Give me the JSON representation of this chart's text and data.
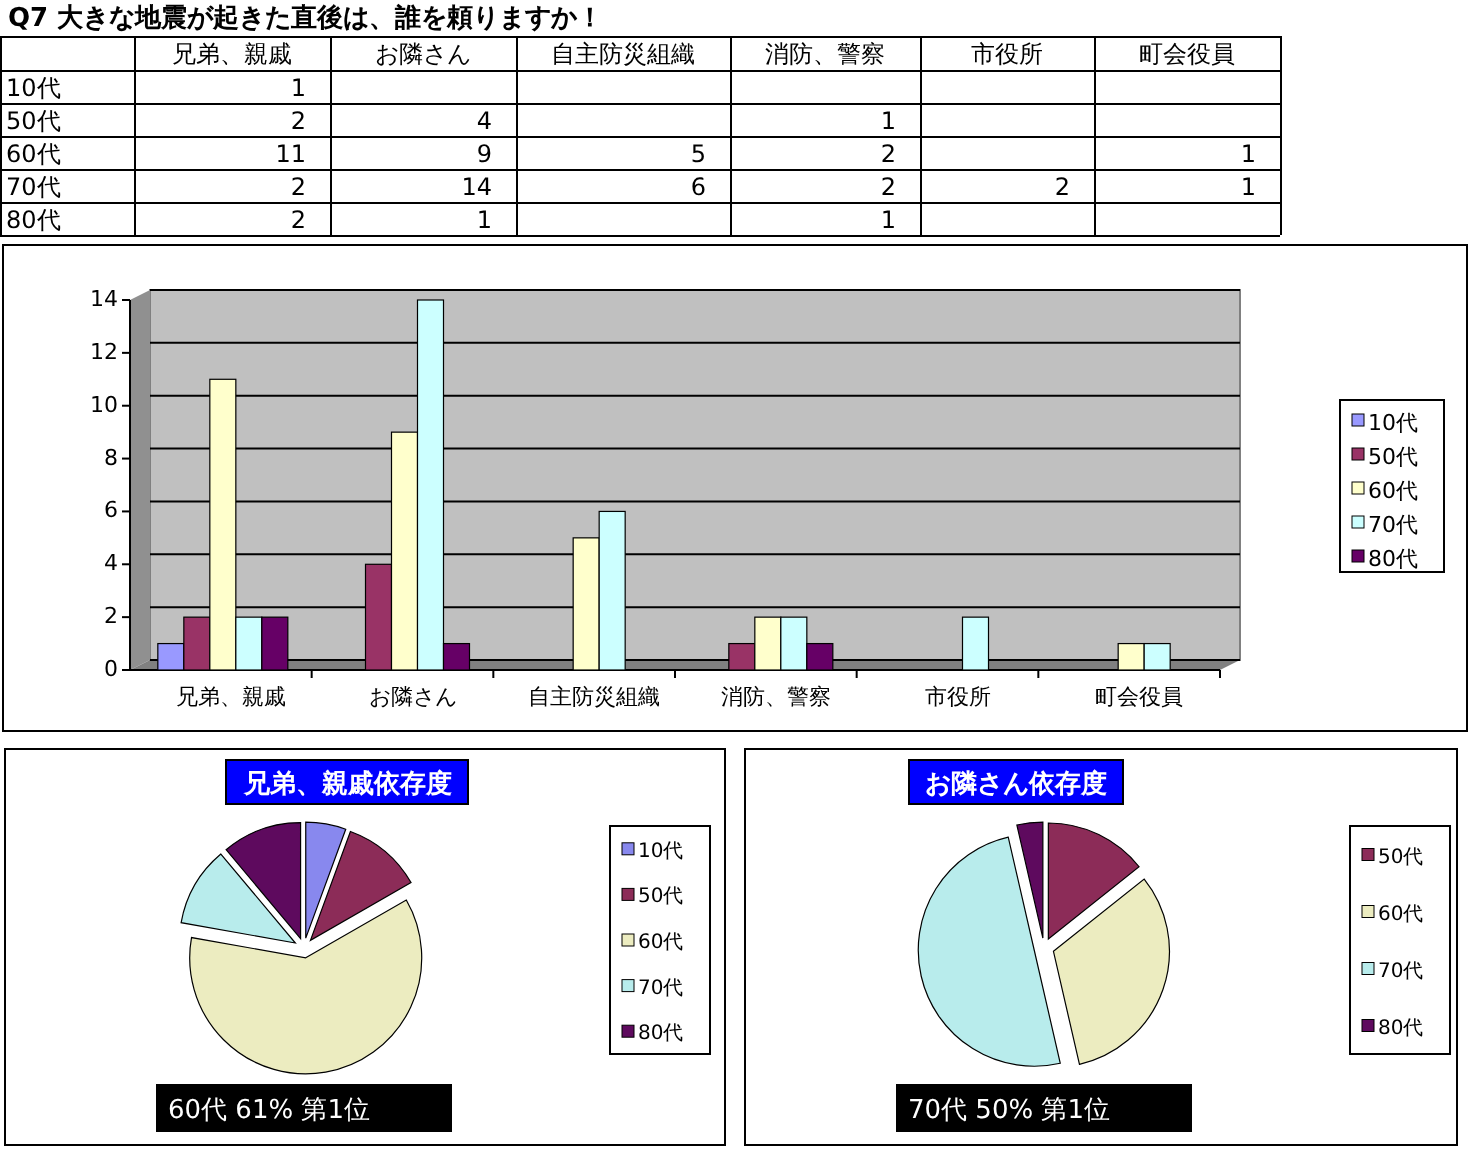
{
  "chart_data": [
    {
      "type": "heatmap",
      "title": "Q7 大きな地震が起きた直後は、誰を頼りますか！",
      "categories": [
        "兄弟、親戚",
        "お隣さん",
        "自主防災組織",
        "消防、警察",
        "市役所",
        "町会役員"
      ],
      "y_categories": [
        "10代",
        "50代",
        "60代",
        "70代",
        "80代"
      ],
      "cells": [
        [
          1,
          null,
          null,
          null,
          null,
          null
        ],
        [
          2,
          4,
          null,
          1,
          null,
          null
        ],
        [
          11,
          9,
          5,
          2,
          null,
          1
        ],
        [
          2,
          14,
          6,
          2,
          2,
          1
        ],
        [
          2,
          1,
          null,
          1,
          null,
          null
        ]
      ],
      "data_labels": true
    },
    {
      "type": "bar",
      "categories": [
        "兄弟、親戚",
        "お隣さん",
        "自主防災組織",
        "消防、警察",
        "市役所",
        "町会役員"
      ],
      "series": [
        {
          "name": "10代",
          "color": "#9999ff",
          "values": [
            1,
            null,
            null,
            null,
            null,
            null
          ]
        },
        {
          "name": "50代",
          "color": "#993366",
          "values": [
            2,
            4,
            null,
            1,
            null,
            null
          ]
        },
        {
          "name": "60代",
          "color": "#ffffcc",
          "values": [
            11,
            9,
            5,
            2,
            null,
            1
          ]
        },
        {
          "name": "70代",
          "color": "#ccffff",
          "values": [
            2,
            14,
            6,
            2,
            2,
            1
          ]
        },
        {
          "name": "80代",
          "color": "#660066",
          "values": [
            2,
            1,
            null,
            1,
            null,
            null
          ]
        }
      ],
      "ylim": [
        0,
        14
      ],
      "yticks": [
        0,
        2,
        4,
        6,
        8,
        10,
        12,
        14
      ],
      "grid": "y",
      "legend": "right"
    },
    {
      "type": "pie",
      "title": "兄弟、親戚依存度",
      "categories": [
        "10代",
        "50代",
        "60代",
        "70代",
        "80代"
      ],
      "values": [
        5.6,
        11.1,
        61.1,
        11.1,
        11.1
      ],
      "colors": [
        "#8888ee",
        "#8c2c58",
        "#ececc0",
        "#b8ecec",
        "#5e0a5e"
      ],
      "legend": "right",
      "annotations": [
        "60代 61% 第1位"
      ]
    },
    {
      "type": "pie",
      "title": "お隣さん依存度",
      "categories": [
        "50代",
        "60代",
        "70代",
        "80代"
      ],
      "values": [
        14.3,
        32.1,
        50,
        3.6
      ],
      "colors": [
        "#8c2c58",
        "#ececc0",
        "#b8ecec",
        "#5e0a5e"
      ],
      "legend": "right",
      "annotations": [
        "70代 50% 第1位"
      ]
    }
  ]
}
